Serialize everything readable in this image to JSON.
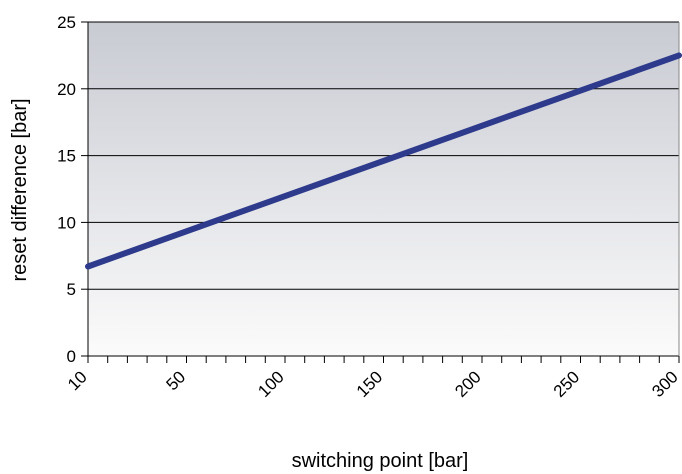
{
  "chart_data": {
    "type": "line",
    "title": "",
    "xlabel": "switching point [bar]",
    "ylabel": "reset difference [bar]",
    "xlim": [
      10,
      300
    ],
    "ylim": [
      0,
      25
    ],
    "x_ticks": [
      "10",
      "50",
      "100",
      "150",
      "200",
      "250",
      "300"
    ],
    "y_ticks": [
      "0",
      "5",
      "10",
      "15",
      "20",
      "25"
    ],
    "grid": "horizontal",
    "legend": "none",
    "series": [
      {
        "x": [
          10,
          300
        ],
        "y": [
          6.7,
          22.5
        ],
        "color": "#2e3a8c"
      }
    ],
    "background_gradient": [
      "#c9cbd3",
      "#fbfbfb"
    ]
  }
}
